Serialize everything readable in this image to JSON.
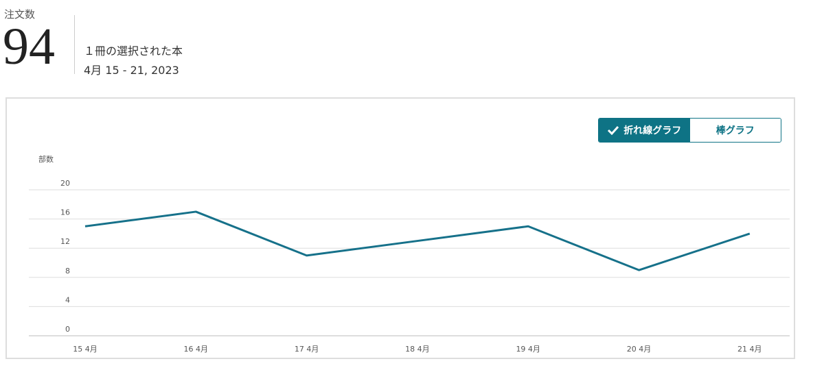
{
  "header": {
    "label": "注文数",
    "total": 94,
    "subtitle": "１冊の選択された本",
    "dates": "4月 15 - 21, 2023"
  },
  "toggle": {
    "options": [
      "折れ線グラフ",
      "棒グラフ"
    ]
  },
  "chart_data": {
    "type": "line",
    "y_label": "部数",
    "categories": [
      "15 4月",
      "16 4月",
      "17 4月",
      "18 4月",
      "19 4月",
      "20 4月",
      "21 4月"
    ],
    "series": [
      {
        "name": null,
        "color": "#16718a",
        "values": [
          15,
          17,
          11,
          13,
          15,
          9,
          14
        ]
      }
    ],
    "ylim": [
      0,
      20
    ],
    "yticks": [
      0,
      4,
      8,
      12,
      16,
      20
    ],
    "grid": true
  }
}
